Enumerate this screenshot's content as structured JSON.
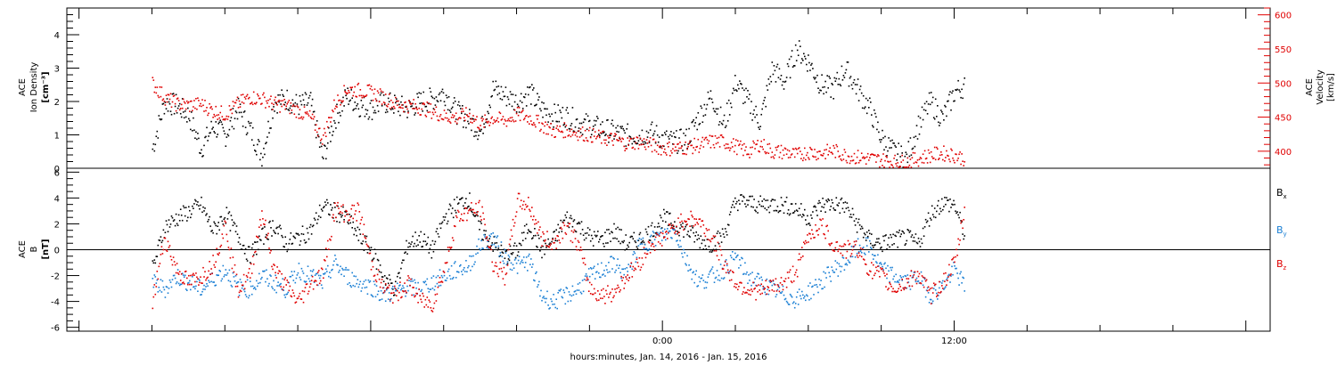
{
  "chart_data": [
    {
      "type": "scatter",
      "panel": "top",
      "ylabel_lines": [
        "ACE",
        "Ion Density"
      ],
      "ylabel_units": "[cm⁻³]",
      "y2label_lines": [
        "ACE",
        "Velocity"
      ],
      "y2label_units": "[km/s]",
      "ylim": [
        0,
        4.8
      ],
      "y2lim": [
        375,
        610
      ],
      "y_ticks": [
        "0",
        "1",
        "2",
        "3",
        "4"
      ],
      "y2_ticks": [
        "400",
        "450",
        "500",
        "550",
        "600"
      ],
      "series": [
        {
          "name": "",
          "axis": "left",
          "color": "#000000",
          "x": [
            -21,
            -20.5,
            -20,
            -19.5,
            -19,
            -18.5,
            -18,
            -17.5,
            -17,
            -16.5,
            -16,
            -15.5,
            -15,
            -14.5,
            -14,
            -13.5,
            -13,
            -12.5,
            -12,
            -11.5,
            -11,
            -10.5,
            -10,
            -9.5,
            -9,
            -8.5,
            -8,
            -7.5,
            -7,
            -6.5,
            -6,
            -5.5,
            -5,
            -4.5,
            -4,
            -3.5,
            -3,
            -2.5,
            -2,
            -1.5,
            -1,
            -0.5,
            0,
            0.5,
            1,
            1.5,
            2,
            2.5,
            3,
            3.5,
            4,
            4.5,
            5,
            5.5,
            6,
            6.5,
            7,
            7.5,
            8,
            8.5,
            9,
            9.5,
            10,
            10.5,
            11,
            11.5,
            12,
            12.4
          ],
          "values": [
            0.6,
            2.0,
            1.9,
            1.6,
            0.6,
            1.3,
            1.0,
            1.8,
            1.2,
            0.4,
            2.0,
            2.1,
            1.9,
            2.0,
            0.3,
            1.5,
            2.2,
            1.9,
            1.8,
            2.0,
            1.9,
            1.8,
            2.0,
            2.1,
            2.3,
            1.7,
            1.5,
            1.1,
            2.4,
            2.2,
            2.0,
            2.3,
            1.8,
            1.6,
            1.6,
            1.4,
            1.3,
            1.2,
            1.1,
            1.0,
            1.0,
            1.1,
            0.9,
            0.8,
            0.9,
            1.6,
            2.2,
            1.3,
            2.6,
            2.0,
            1.4,
            3.0,
            2.6,
            3.6,
            3.2,
            2.5,
            2.4,
            3.0,
            2.4,
            1.8,
            0.9,
            0.5,
            0.3,
            1.3,
            2.0,
            1.5,
            2.3,
            2.5
          ]
        },
        {
          "name": "",
          "axis": "right",
          "color": "#e00000",
          "x": [
            -21,
            -20.5,
            -20,
            -19.5,
            -19,
            -18.5,
            -18,
            -17.5,
            -17,
            -16.5,
            -16,
            -15.5,
            -15,
            -14.5,
            -14,
            -13.5,
            -13,
            -12.5,
            -12,
            -11.5,
            -11,
            -10.5,
            -10,
            -9.5,
            -9,
            -8.5,
            -8,
            -7.5,
            -7,
            -6.5,
            -6,
            -5.5,
            -5,
            -4.5,
            -4,
            -3.5,
            -3,
            -2.5,
            -2,
            -1.5,
            -1,
            -0.5,
            0,
            0.5,
            1,
            1.5,
            2,
            2.5,
            3,
            3.5,
            4,
            4.5,
            5,
            5.5,
            6,
            6.5,
            7,
            7.5,
            8,
            8.5,
            9,
            9.5,
            10,
            10.5,
            11,
            11.5,
            12,
            12.4
          ],
          "values": [
            500,
            480,
            470,
            468,
            470,
            460,
            455,
            470,
            480,
            478,
            470,
            468,
            460,
            450,
            420,
            470,
            492,
            490,
            487,
            480,
            470,
            468,
            465,
            460,
            452,
            450,
            455,
            440,
            450,
            445,
            455,
            450,
            440,
            430,
            432,
            428,
            425,
            420,
            418,
            412,
            415,
            410,
            405,
            405,
            407,
            410,
            415,
            415,
            408,
            400,
            412,
            400,
            400,
            395,
            400,
            398,
            402,
            395,
            392,
            390,
            388,
            385,
            385,
            390,
            395,
            398,
            395,
            390
          ]
        }
      ]
    },
    {
      "type": "scatter",
      "panel": "bottom",
      "ylabel_lines": [
        "ACE",
        "B"
      ],
      "ylabel_units": "[nT]",
      "ylim": [
        -6.3,
        6.3
      ],
      "y_ticks": [
        "-6",
        "-4",
        "-2",
        "0",
        "2",
        "4",
        "6"
      ],
      "zero_line": true,
      "xlabel": "hours:minutes, Jan. 14, 2016 - Jan. 15, 2016",
      "xlim": [
        -24.5,
        25
      ],
      "x_tick_labels": [
        {
          "x": 0,
          "label": "0:00"
        },
        {
          "x": 12,
          "label": "12:00"
        }
      ],
      "series": [
        {
          "name": "Bx",
          "legend_main": "B",
          "legend_sub": "x",
          "color": "#000000",
          "x": [
            -21,
            -20.5,
            -20,
            -19.5,
            -19,
            -18.5,
            -18,
            -17.5,
            -17,
            -16.5,
            -16,
            -15.5,
            -15,
            -14.5,
            -14,
            -13.5,
            -13,
            -12.5,
            -12,
            -11.5,
            -11,
            -10.5,
            -10,
            -9.5,
            -9,
            -8.5,
            -8,
            -7.5,
            -7,
            -6.5,
            -6,
            -5.5,
            -5,
            -4.5,
            -4,
            -3.5,
            -3,
            -2.5,
            -2,
            -1.5,
            -1,
            -0.5,
            0,
            0.5,
            1,
            1.5,
            2,
            2.5,
            3,
            3.5,
            4,
            4.5,
            5,
            5.5,
            6,
            6.5,
            7,
            7.5,
            8,
            8.5,
            9,
            9.5,
            10,
            10.5,
            11,
            11.5,
            12,
            12.4
          ],
          "values": [
            -1.5,
            1.8,
            2.5,
            3.0,
            3.5,
            1.5,
            2.8,
            1.2,
            -0.5,
            1.0,
            2.0,
            0.5,
            1.0,
            1.5,
            3.4,
            3.0,
            2.5,
            1.0,
            0.0,
            -2.0,
            -3.0,
            0.5,
            1.0,
            0.0,
            2.5,
            3.5,
            4.0,
            1.5,
            0.5,
            -0.5,
            0.0,
            2.0,
            0.0,
            0.8,
            2.5,
            2.0,
            1.0,
            0.8,
            1.5,
            0.5,
            0.8,
            1.5,
            2.5,
            2.0,
            1.5,
            0.8,
            0.5,
            1.2,
            3.8,
            3.7,
            3.5,
            3.6,
            3.5,
            3.2,
            2.5,
            3.5,
            3.6,
            3.4,
            2.0,
            0.8,
            0.5,
            0.8,
            1.0,
            0.5,
            2.8,
            3.7,
            3.5,
            1.2
          ]
        },
        {
          "name": "By",
          "legend_main": "B",
          "legend_sub": "y",
          "color": "#1a7fd4",
          "x": [
            -21,
            -20.5,
            -20,
            -19.5,
            -19,
            -18.5,
            -18,
            -17.5,
            -17,
            -16.5,
            -16,
            -15.5,
            -15,
            -14.5,
            -14,
            -13.5,
            -13,
            -12.5,
            -12,
            -11.5,
            -11,
            -10.5,
            -10,
            -9.5,
            -9,
            -8.5,
            -8,
            -7.5,
            -7,
            -6.5,
            -6,
            -5.5,
            -5,
            -4.5,
            -4,
            -3.5,
            -3,
            -2.5,
            -2,
            -1.5,
            -1,
            -0.5,
            0,
            0.5,
            1,
            1.5,
            2,
            2.5,
            3,
            3.5,
            4,
            4.5,
            5,
            5.5,
            6,
            6.5,
            7,
            7.5,
            8,
            8.5,
            9,
            9.5,
            10,
            10.5,
            11,
            11.5,
            12,
            12.4
          ],
          "values": [
            -2.5,
            -3.0,
            -2.0,
            -2.5,
            -3.0,
            -2.2,
            -1.5,
            -2.8,
            -3.0,
            -2.0,
            -2.5,
            -3.0,
            -1.5,
            -2.0,
            -2.5,
            -1.0,
            -2.0,
            -2.5,
            -2.8,
            -3.5,
            -3.2,
            -2.8,
            -3.0,
            -2.5,
            -2.0,
            -1.5,
            -1.2,
            0.5,
            1.0,
            -0.5,
            -1.2,
            -0.8,
            -3.5,
            -4.0,
            -3.5,
            -3.0,
            -2.0,
            -1.5,
            -1.0,
            -2.0,
            0.3,
            0.8,
            1.2,
            1.5,
            -1.0,
            -2.5,
            -2.0,
            -1.5,
            -0.5,
            -2.0,
            -2.5,
            -3.0,
            -3.5,
            -3.8,
            -3.2,
            -2.5,
            -1.5,
            -1.0,
            0.2,
            0.3,
            -1.5,
            -2.0,
            -2.5,
            -2.0,
            -3.5,
            -2.8,
            -1.5,
            -2.8
          ]
        },
        {
          "name": "Bz",
          "legend_main": "B",
          "legend_sub": "z",
          "color": "#e00000",
          "x": [
            -21,
            -20.5,
            -20,
            -19.5,
            -19,
            -18.5,
            -18,
            -17.5,
            -17,
            -16.5,
            -16,
            -15.5,
            -15,
            -14.5,
            -14,
            -13.5,
            -13,
            -12.5,
            -12,
            -11.5,
            -11,
            -10.5,
            -10,
            -9.5,
            -9,
            -8.5,
            -8,
            -7.5,
            -7,
            -6.5,
            -6,
            -5.5,
            -5,
            -4.5,
            -4,
            -3.5,
            -3,
            -2.5,
            -2,
            -1.5,
            -1,
            -0.5,
            0,
            0.5,
            1,
            1.5,
            2,
            2.5,
            3,
            3.5,
            4,
            4.5,
            5,
            5.5,
            6,
            6.5,
            7,
            7.5,
            8,
            8.5,
            9,
            9.5,
            10,
            10.5,
            11,
            11.5,
            12,
            12.4
          ],
          "values": [
            -4.0,
            1.0,
            -1.5,
            -2.5,
            -2.0,
            -1.0,
            2.0,
            -3.0,
            -2.0,
            3.0,
            -1.5,
            -2.8,
            -4.0,
            -2.5,
            -1.8,
            3.2,
            2.8,
            3.0,
            -1.0,
            -3.0,
            -3.5,
            -2.5,
            -3.8,
            -4.2,
            -1.5,
            2.5,
            3.0,
            3.2,
            -1.0,
            -2.0,
            3.8,
            3.5,
            1.0,
            0.5,
            2.0,
            0.5,
            -3.0,
            -3.5,
            -3.2,
            -2.0,
            -1.0,
            0.5,
            1.0,
            1.8,
            2.5,
            2.2,
            1.0,
            -1.0,
            -2.5,
            -3.0,
            -3.2,
            -2.8,
            -2.5,
            -1.5,
            1.2,
            2.0,
            0.5,
            0.0,
            0.2,
            -1.5,
            -2.0,
            -3.0,
            -2.5,
            -1.8,
            -3.5,
            -2.5,
            -1.0,
            3.0
          ]
        }
      ]
    }
  ]
}
